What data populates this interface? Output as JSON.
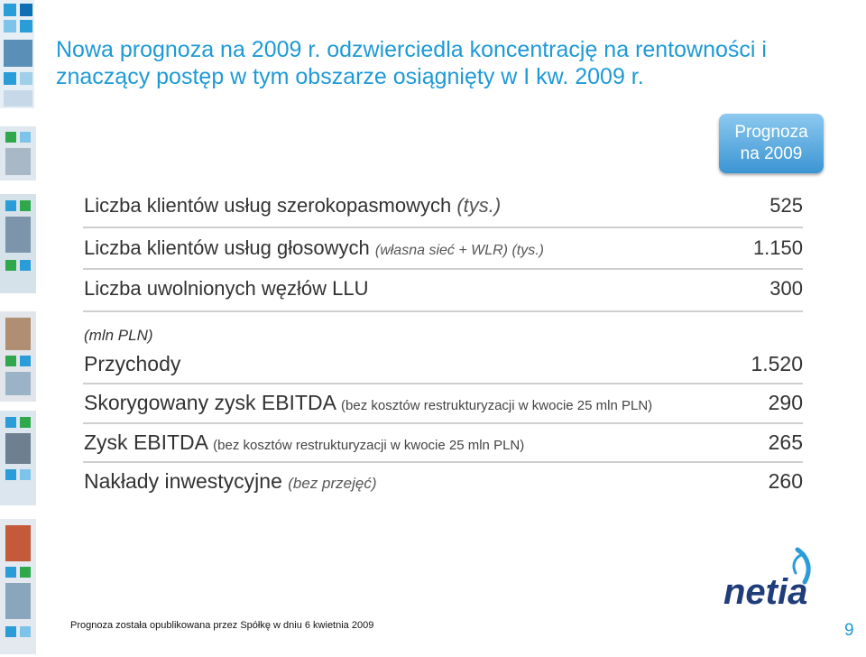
{
  "title": "Nowa prognoza na 2009 r. odzwierciedla koncentrację na rentowności i znaczący postęp w tym obszarze osiągnięty w I kw. 2009 r.",
  "badge": {
    "line1": "Prognoza",
    "line2": "na 2009"
  },
  "kpis": [
    {
      "label": "Liczba klientów usług szerokopasmowych",
      "note": "(tys.)",
      "value": "525"
    },
    {
      "label": "Liczba klientów usług głosowych",
      "note": "(własna sieć + WLR) (tys.)",
      "value": "1.150"
    },
    {
      "label": "Liczba uwolnionych węzłów LLU",
      "note": "",
      "value": "300"
    }
  ],
  "unit_label": "(mln PLN)",
  "financials": [
    {
      "label": "Przychody",
      "note": "",
      "value": "1.520"
    },
    {
      "label": "Skorygowany zysk EBITDA",
      "note": "(bez kosztów restrukturyzacji w kwocie 25 mln PLN)",
      "value": "290"
    },
    {
      "label": "Zysk EBITDA",
      "note": "(bez kosztów restrukturyzacji w kwocie 25 mln PLN)",
      "value": "265"
    },
    {
      "label": "Nakłady inwestycyjne",
      "note": "(bez przejęć)",
      "value": "260"
    }
  ],
  "logo_text": "netia",
  "footnote": "Prognoza została opublikowana przez Spółkę w dniu 6 kwietnia 2009",
  "page_number": "9",
  "colors": {
    "accent": "#1e9ad6",
    "logo": "#1f3d7a",
    "rule": "#cfcfcf"
  }
}
